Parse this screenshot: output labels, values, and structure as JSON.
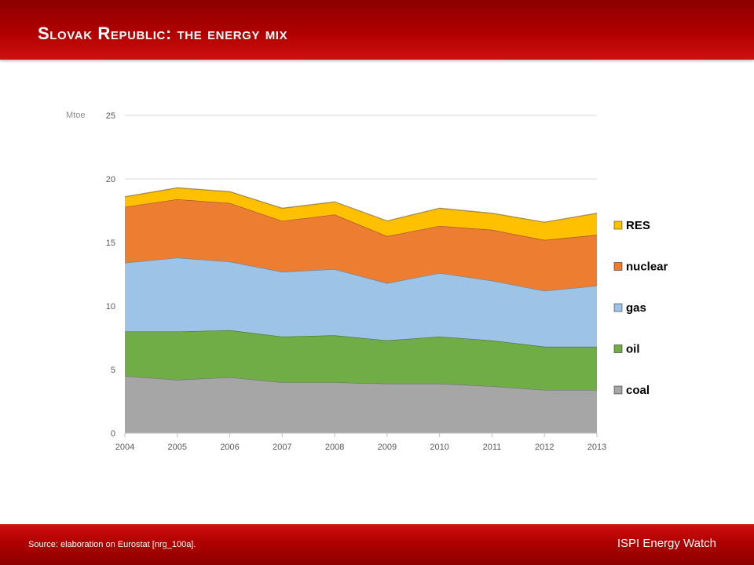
{
  "slide": {
    "title": "Slovak Republic: the energy mix",
    "source": "Source: elaboration on Eurostat [nrg_100a].",
    "brand": "ISPI Energy Watch"
  },
  "chart_data": {
    "type": "area",
    "stacked": true,
    "title": "",
    "xlabel": "",
    "ylabel": "Mtoe",
    "categories": [
      "2004",
      "2005",
      "2006",
      "2007",
      "2008",
      "2009",
      "2010",
      "2011",
      "2012",
      "2013"
    ],
    "ylim": [
      0,
      25
    ],
    "yticks": [
      0,
      5,
      10,
      15,
      20,
      25
    ],
    "grid": true,
    "legend_position": "right",
    "series": [
      {
        "name": "coal",
        "color": "#a6a6a6",
        "values": [
          4.5,
          4.2,
          4.4,
          4.0,
          4.0,
          3.9,
          3.9,
          3.7,
          3.4,
          3.4
        ]
      },
      {
        "name": "oil",
        "color": "#70ad47",
        "values": [
          3.5,
          3.8,
          3.7,
          3.6,
          3.7,
          3.4,
          3.7,
          3.6,
          3.4,
          3.4
        ]
      },
      {
        "name": "gas",
        "color": "#9dc3e6",
        "values": [
          5.4,
          5.8,
          5.4,
          5.1,
          5.2,
          4.5,
          5.0,
          4.7,
          4.4,
          4.8
        ]
      },
      {
        "name": "nuclear",
        "color": "#ed7d31",
        "values": [
          4.4,
          4.6,
          4.6,
          4.0,
          4.3,
          3.7,
          3.7,
          4.0,
          4.0,
          4.0
        ]
      },
      {
        "name": "RES",
        "color": "#ffc000",
        "values": [
          0.8,
          0.9,
          0.9,
          1.0,
          1.0,
          1.2,
          1.4,
          1.3,
          1.4,
          1.7
        ]
      }
    ]
  }
}
